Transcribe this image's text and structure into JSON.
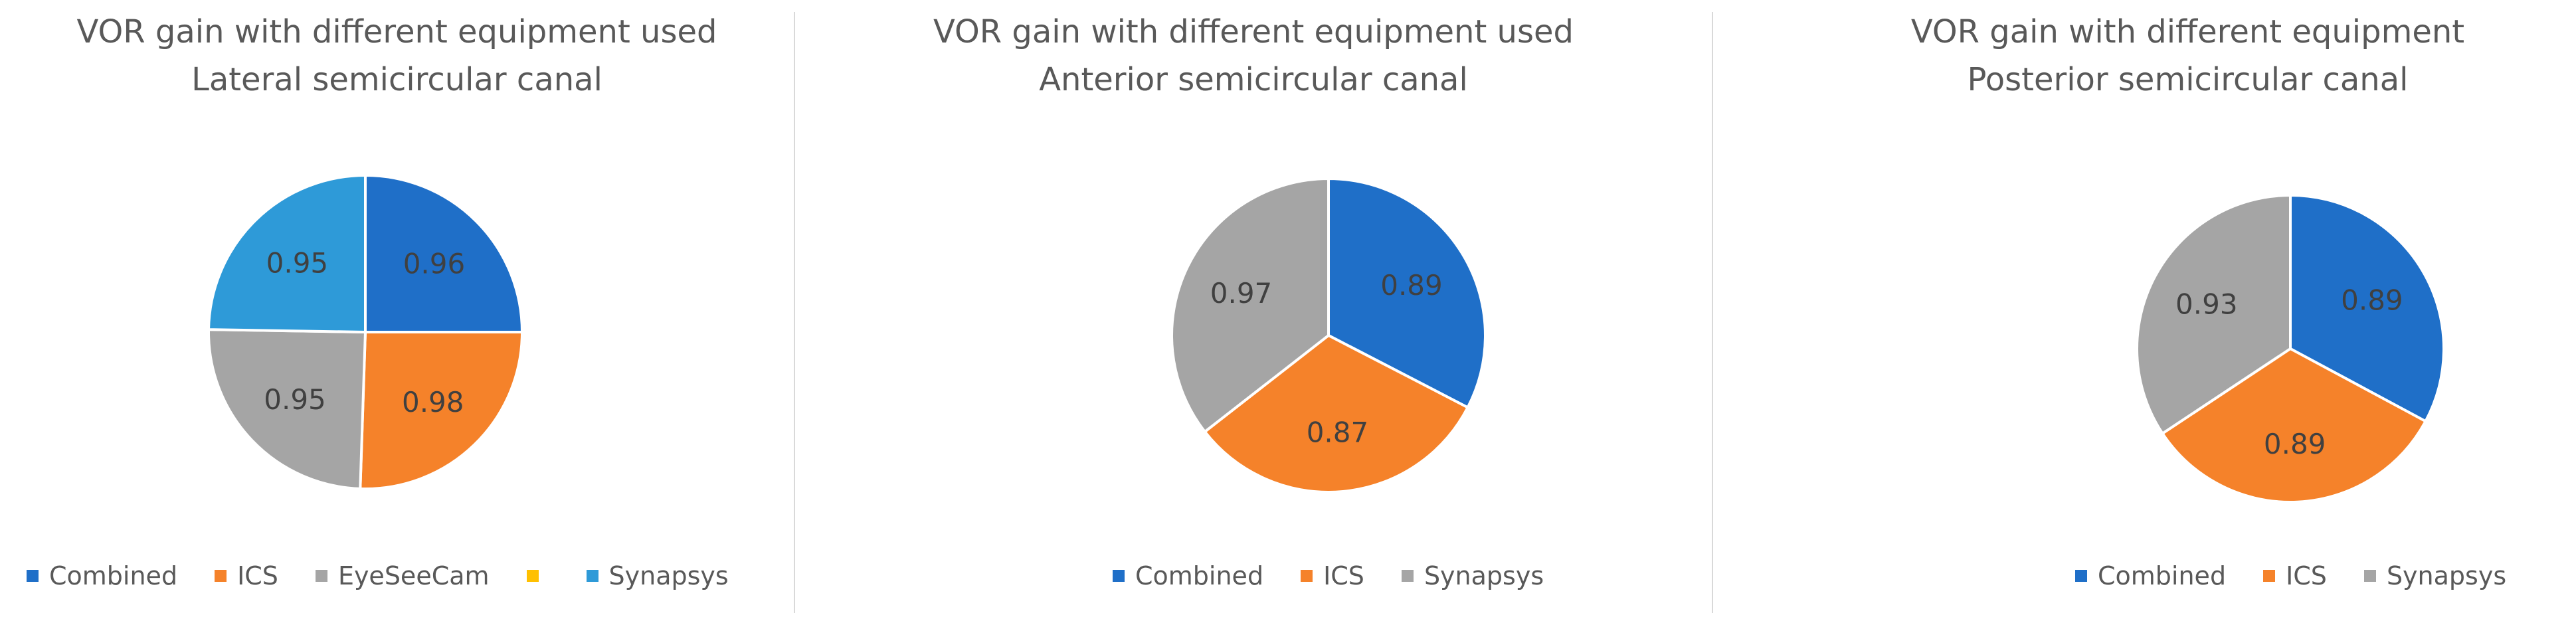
{
  "chart_data": [
    {
      "type": "pie",
      "title": "VOR gain with different equipment used",
      "subtitle": "Lateral semicircular canal",
      "legend_position": "bottom",
      "legend": [
        "Combined",
        "ICS",
        "EyeSeeCam",
        "",
        "Synapsys"
      ],
      "slices": [
        {
          "label": "Combined",
          "value": 0.96,
          "color": "#1f6fc8",
          "show_label": true
        },
        {
          "label": "ICS",
          "value": 0.98,
          "color": "#f5822a",
          "show_label": true
        },
        {
          "label": "EyeSeeCam",
          "value": 0.95,
          "color": "#a5a5a5",
          "show_label": true
        },
        {
          "label": "",
          "value": 0,
          "color": "#ffc000",
          "show_label": false
        },
        {
          "label": "Synapsys",
          "value": 0.95,
          "color": "#2e9ad8",
          "show_label": true
        }
      ]
    },
    {
      "type": "pie",
      "title": "VOR gain with different equipment used",
      "subtitle": "Anterior semicircular canal",
      "legend_position": "bottom",
      "legend": [
        "Combined",
        "ICS",
        "Synapsys"
      ],
      "slices": [
        {
          "label": "Combined",
          "value": 0.89,
          "color": "#1f6fc8",
          "show_label": true
        },
        {
          "label": "ICS",
          "value": 0.87,
          "color": "#f5822a",
          "show_label": true
        },
        {
          "label": "Synapsys",
          "value": 0.97,
          "color": "#a5a5a5",
          "show_label": true
        }
      ]
    },
    {
      "type": "pie",
      "title": "VOR gain with different equipment",
      "subtitle": "Posterior semicircular canal",
      "legend_position": "bottom",
      "legend": [
        "Combined",
        "ICS",
        "Synapsys"
      ],
      "slices": [
        {
          "label": "Combined",
          "value": 0.89,
          "color": "#1f6fc8",
          "show_label": true
        },
        {
          "label": "ICS",
          "value": 0.89,
          "color": "#f5822a",
          "show_label": true
        },
        {
          "label": "Synapsys",
          "value": 0.93,
          "color": "#a5a5a5",
          "show_label": true
        }
      ]
    }
  ]
}
